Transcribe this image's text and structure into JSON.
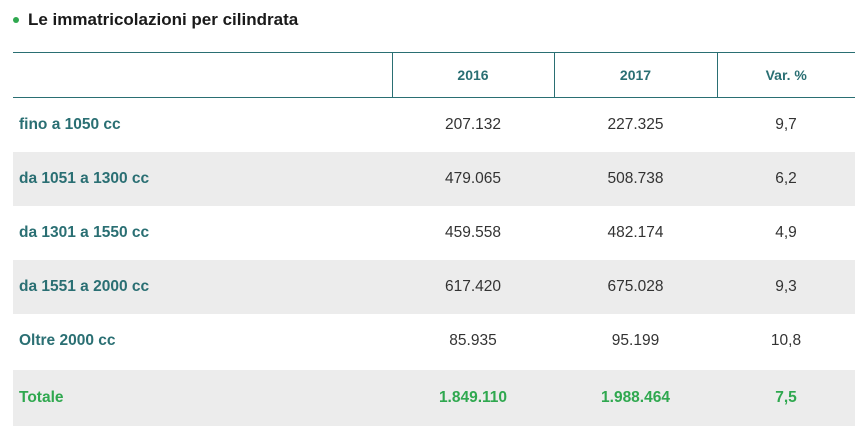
{
  "title": "Le immatricolazioni per cilindrata",
  "colors": {
    "accent": "#2fa84f",
    "teal": "#2a6f73",
    "shade": "#ececec"
  },
  "table": {
    "headers": [
      "",
      "2016",
      "2017",
      "Var. %"
    ],
    "rows": [
      {
        "label": "fino a 1050 cc",
        "y2016": "207.132",
        "y2017": "227.325",
        "var": "9,7"
      },
      {
        "label": "da 1051 a 1300 cc",
        "y2016": "479.065",
        "y2017": "508.738",
        "var": "6,2"
      },
      {
        "label": "da 1301 a 1550 cc",
        "y2016": "459.558",
        "y2017": "482.174",
        "var": "4,9"
      },
      {
        "label": "da 1551 a 2000 cc",
        "y2016": "617.420",
        "y2017": "675.028",
        "var": "9,3"
      },
      {
        "label": "Oltre 2000 cc",
        "y2016": "85.935",
        "y2017": "95.199",
        "var": "10,8"
      }
    ],
    "total": {
      "label": "Totale",
      "y2016": "1.849.110",
      "y2017": "1.988.464",
      "var": "7,5"
    }
  }
}
